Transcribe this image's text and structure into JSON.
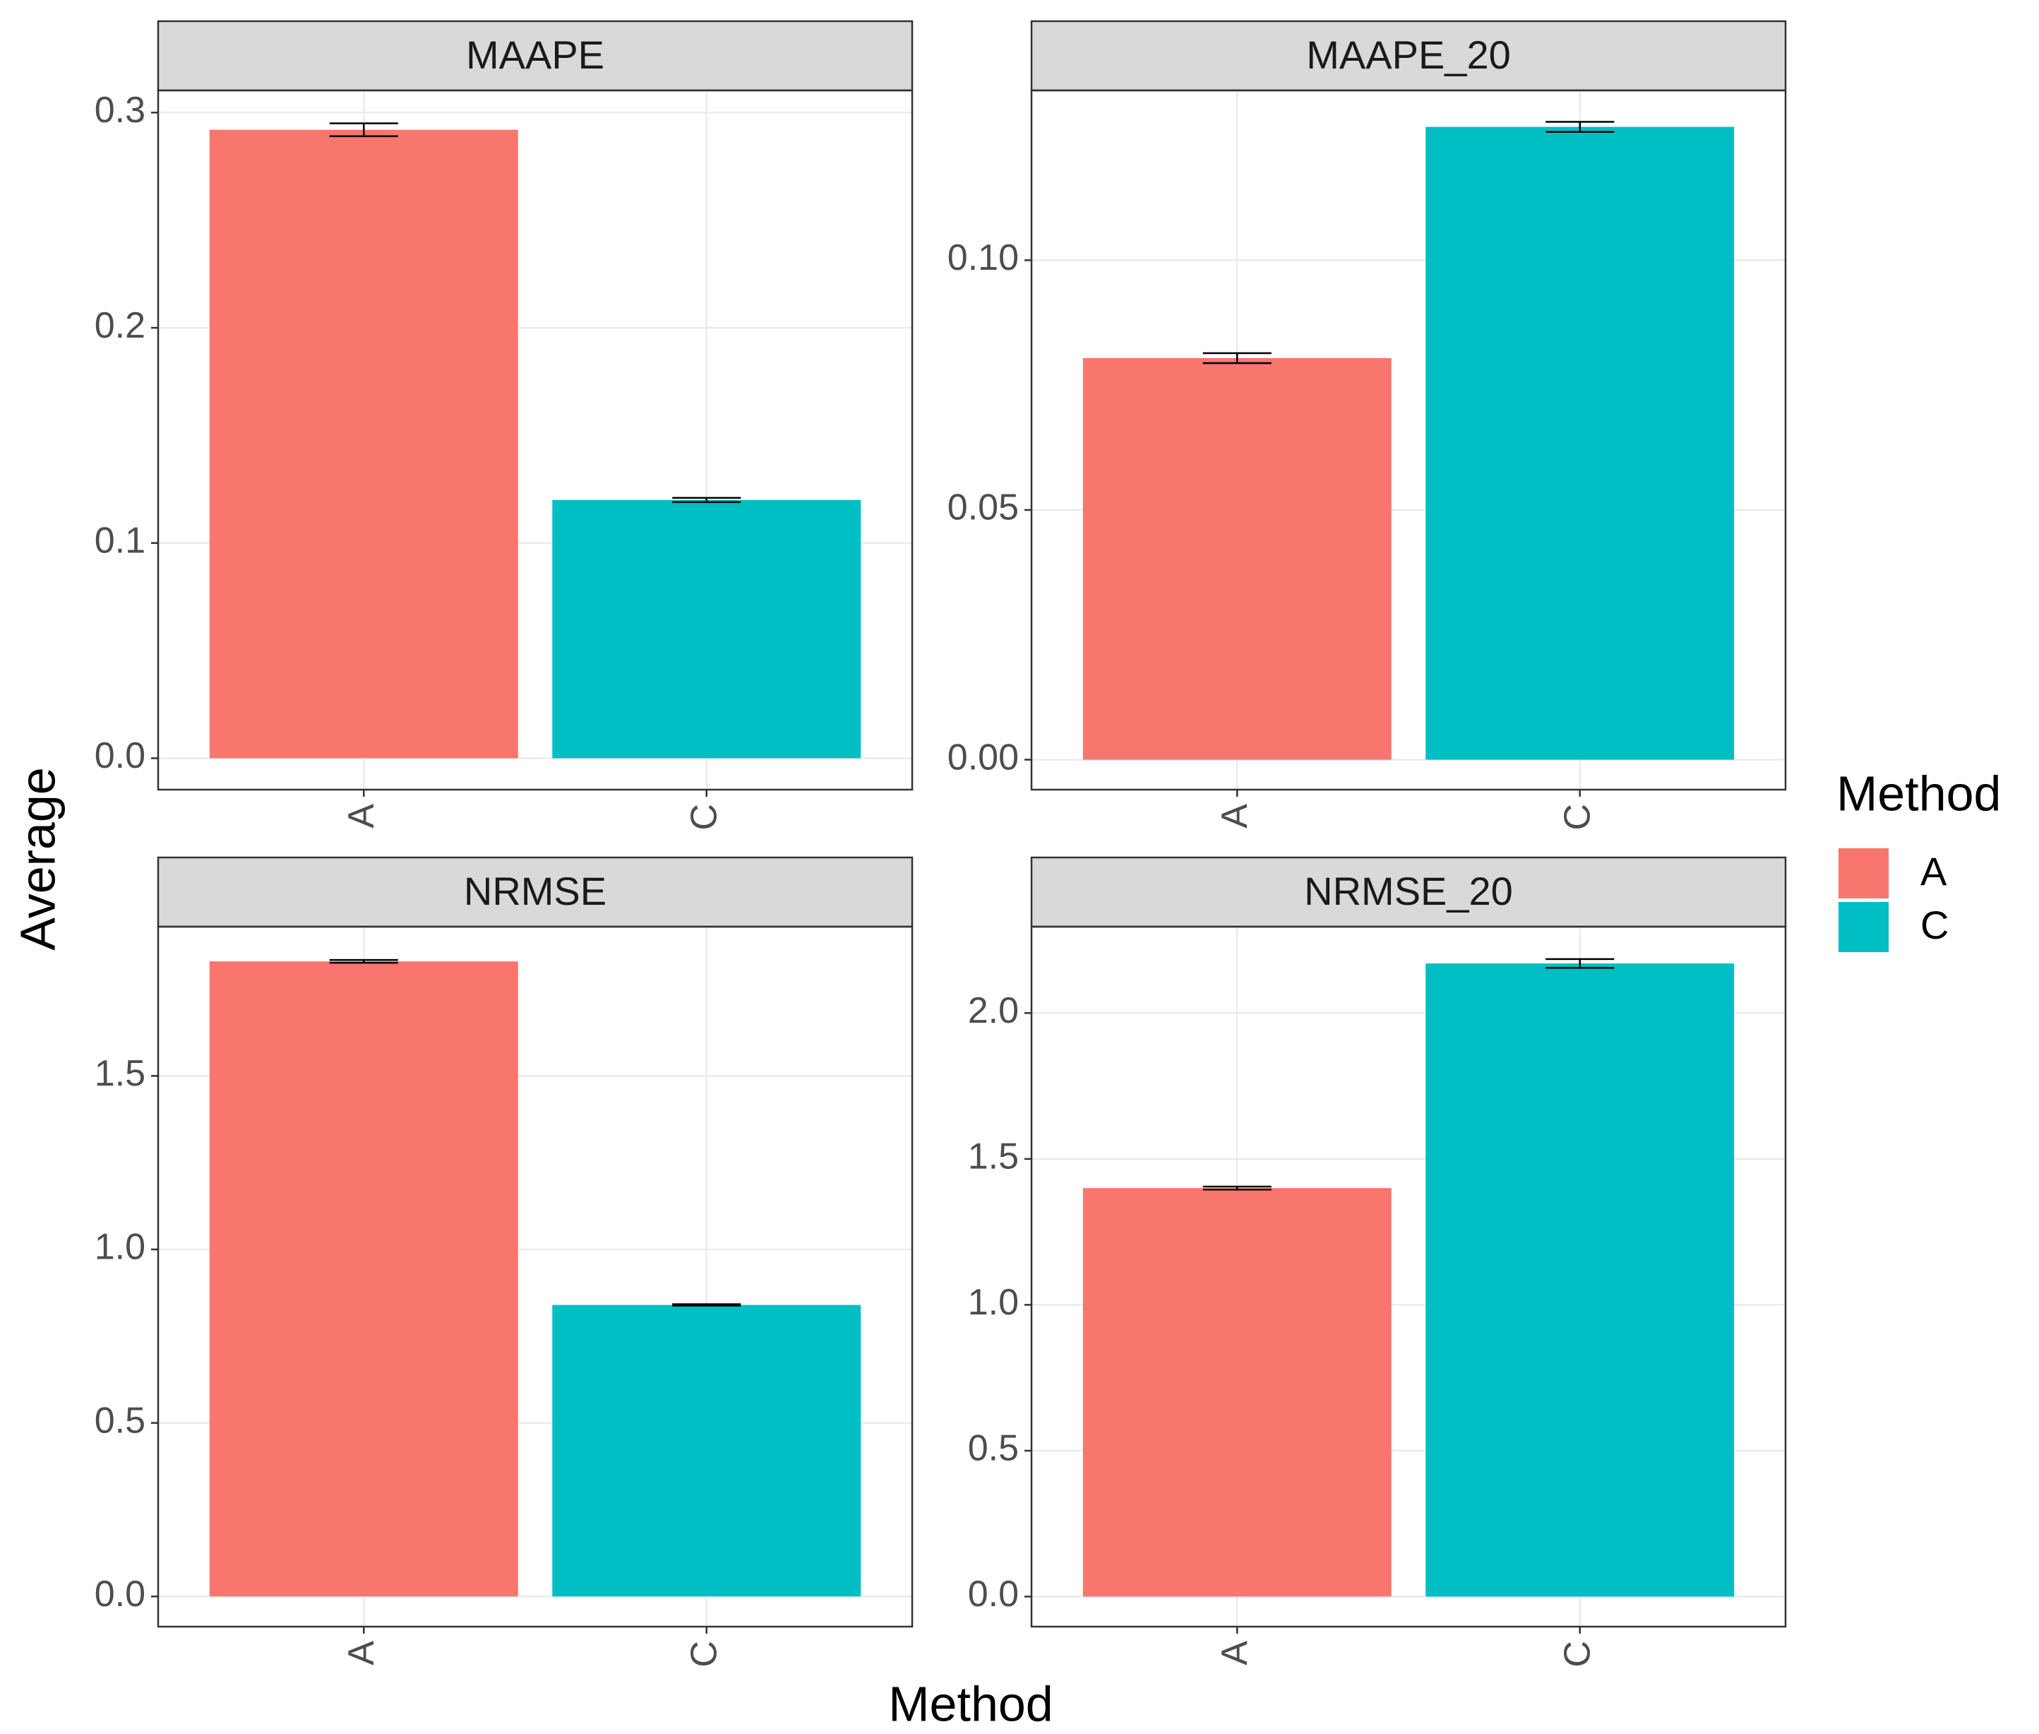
{
  "chart_data": [
    {
      "type": "bar",
      "title": "MAAPE",
      "categories": [
        "A",
        "C"
      ],
      "values": [
        0.292,
        0.12
      ],
      "errors": [
        0.003,
        0.001
      ],
      "colors": [
        "#f8766d",
        "#00bfc4"
      ],
      "ylim": [
        -0.0146,
        0.3103
      ],
      "yticks": [
        {
          "value": 0,
          "label": "0.0"
        },
        0.1,
        0.2,
        0.3
      ],
      "grid": true
    },
    {
      "type": "bar",
      "title": "MAAPE_20",
      "categories": [
        "A",
        "C"
      ],
      "values": [
        0.0804,
        0.1267
      ],
      "errors": [
        0.001,
        0.001
      ],
      "colors": [
        "#f8766d",
        "#00bfc4"
      ],
      "ylim": [
        -0.006,
        0.134
      ],
      "yticks": [
        {
          "value": 0,
          "label": "0.00"
        },
        0.05,
        {
          "value": 0.1,
          "label": "0.10"
        }
      ],
      "grid": true
    },
    {
      "type": "bar",
      "title": "NRMSE",
      "categories": [
        "A",
        "C"
      ],
      "values": [
        1.83,
        0.84
      ],
      "errors": [
        0.004,
        0.002
      ],
      "colors": [
        "#f8766d",
        "#00bfc4"
      ],
      "ylim": [
        -0.087,
        1.93
      ],
      "yticks": [
        {
          "value": 0,
          "label": "0.0"
        },
        0.5,
        {
          "value": 1,
          "label": "1.0"
        },
        1.5
      ],
      "grid": true
    },
    {
      "type": "bar",
      "title": "NRMSE_20",
      "categories": [
        "A",
        "C"
      ],
      "values": [
        1.4,
        2.17
      ],
      "errors": [
        0.005,
        0.015
      ],
      "colors": [
        "#f8766d",
        "#00bfc4"
      ],
      "ylim": [
        -0.103,
        2.296
      ],
      "yticks": [
        {
          "value": 0,
          "label": "0.0"
        },
        0.5,
        {
          "value": 1,
          "label": "1.0"
        },
        1.5,
        {
          "value": 2,
          "label": "2.0"
        }
      ],
      "grid": true
    }
  ],
  "axis_labels": {
    "x": "Method",
    "y": "Average"
  },
  "legend": {
    "title": "Method",
    "entries": [
      {
        "name": "A",
        "color": "#f8766d"
      },
      {
        "name": "C",
        "color": "#00bfc4"
      }
    ]
  }
}
